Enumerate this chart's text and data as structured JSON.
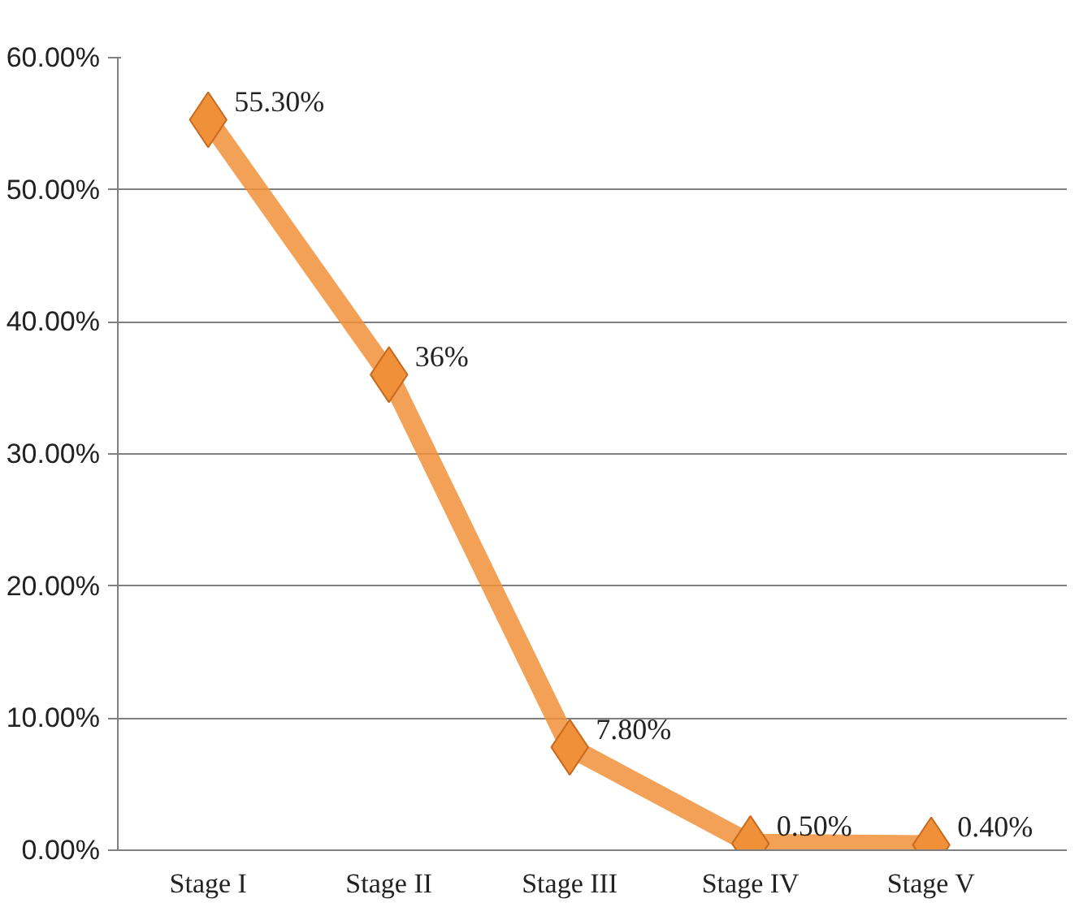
{
  "chart_data": {
    "type": "line",
    "categories": [
      "Stage I",
      "Stage II",
      "Stage III",
      "Stage IV",
      "Stage V"
    ],
    "series": [
      {
        "color": "#f0913a",
        "values": [
          55.3,
          36,
          7.8,
          0.5,
          0.4
        ],
        "value_labels": [
          "55.30%",
          "36%",
          "7.80%",
          "0.50%",
          "0.40%"
        ]
      }
    ],
    "ylim": [
      0,
      60
    ],
    "yticks": [
      {
        "value": 0,
        "label": "0.00%"
      },
      {
        "value": 10,
        "label": "10.00%"
      },
      {
        "value": 20,
        "label": "20.00%"
      },
      {
        "value": 30,
        "label": "30.00%"
      },
      {
        "value": 40,
        "label": "40.00%"
      },
      {
        "value": 50,
        "label": "50.00%"
      },
      {
        "value": 60,
        "label": "60.00%"
      }
    ],
    "grid": "y",
    "marker": "diamond",
    "line_style": "solid"
  }
}
